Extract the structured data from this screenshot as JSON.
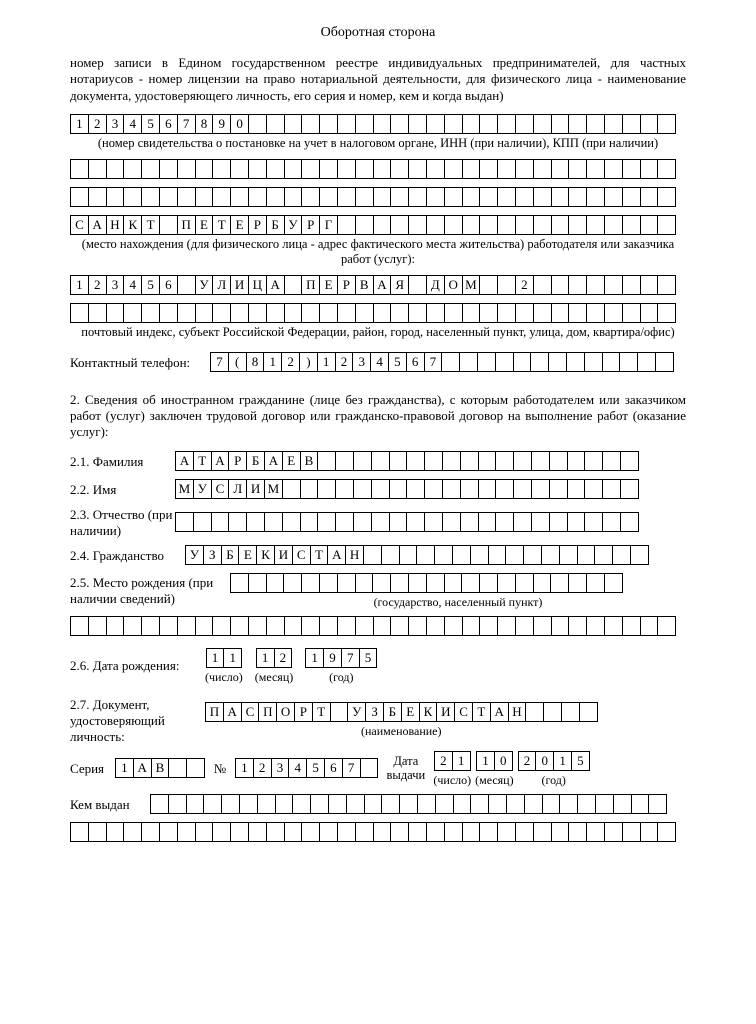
{
  "title": "Оборотная сторона",
  "intro": "номер записи в Едином государственном реестре индивидуальных предпринимателей, для частных нотариусов - номер лицензии на право нотариальной деятельности, для физического лица - наименование документа, удостоверяющего личность, его серия и номер, кем и когда выдан)",
  "row1": {
    "cells": 34,
    "text": "1234567890"
  },
  "cap1": "(номер свидетельства о постановке на учет в налоговом органе, ИНН (при наличии), КПП (при наличии)",
  "row2": {
    "cells": 34,
    "text": ""
  },
  "row3": {
    "cells": 34,
    "text": ""
  },
  "row4": {
    "cells": 34,
    "text": "САНКТ ПЕТЕРБУРГ"
  },
  "cap2": "(место нахождения (для физического лица - адрес фактического места жительства) работодателя или заказчика работ (услуг):",
  "row5": {
    "cells": 34,
    "text": "123456 УЛИЦА ПЕРВАЯ ДОМ  2"
  },
  "row6": {
    "cells": 34,
    "text": ""
  },
  "cap3": "почтовый индекс, субъект Российской Федерации, район, город, населенный пункт, улица, дом, квартира/офис)",
  "phone_label": "Контактный телефон:",
  "phone": {
    "cells": 26,
    "text": "7(812)1234567"
  },
  "section2": "2. Сведения об иностранном гражданине (лице без гражданства), с которым работодателем или заказчиком работ (услуг) заключен трудовой договор или гражданско-правовой договор на выполнение работ (оказание услуг):",
  "f21_label": "2.1. Фамилия",
  "f21": {
    "cells": 26,
    "text": "АТАРБАЕВ"
  },
  "f22_label": "2.2. Имя",
  "f22": {
    "cells": 26,
    "text": "МУСЛИМ"
  },
  "f23_label": "2.3. Отчество (при наличии)",
  "f23": {
    "cells": 26,
    "text": ""
  },
  "f24_label": "2.4. Гражданство",
  "f24": {
    "cells": 26,
    "text": "УЗБЕКИСТАН"
  },
  "f25_label": "2.5. Место рождения (при наличии сведений)",
  "f25": {
    "cells": 22,
    "text": ""
  },
  "cap25": "(государство, населенный пункт)",
  "f25b": {
    "cells": 34,
    "text": ""
  },
  "f26_label": "2.6. Дата рождения:",
  "f26_day": "11",
  "f26_month": "12",
  "f26_year": "1975",
  "sub_day": "(число)",
  "sub_month": "(месяц)",
  "sub_year": "(год)",
  "f27_label": "2.7. Документ, удостоверяющий личность:",
  "f27": {
    "cells": 22,
    "text": "ПАСПОРТ УЗБЕКИСТАН"
  },
  "cap27": "(наименование)",
  "ser_label": "Серия",
  "ser": {
    "cells": 5,
    "text": "1АВ"
  },
  "num_label": "№",
  "num": {
    "cells": 8,
    "text": "1234567"
  },
  "date_label": "Дата выдачи",
  "id_day": "21",
  "id_month": "10",
  "id_year": "2015",
  "kem_label": "Кем выдан",
  "kem1": {
    "cells": 29,
    "text": ""
  },
  "kem2": {
    "cells": 34,
    "text": ""
  }
}
